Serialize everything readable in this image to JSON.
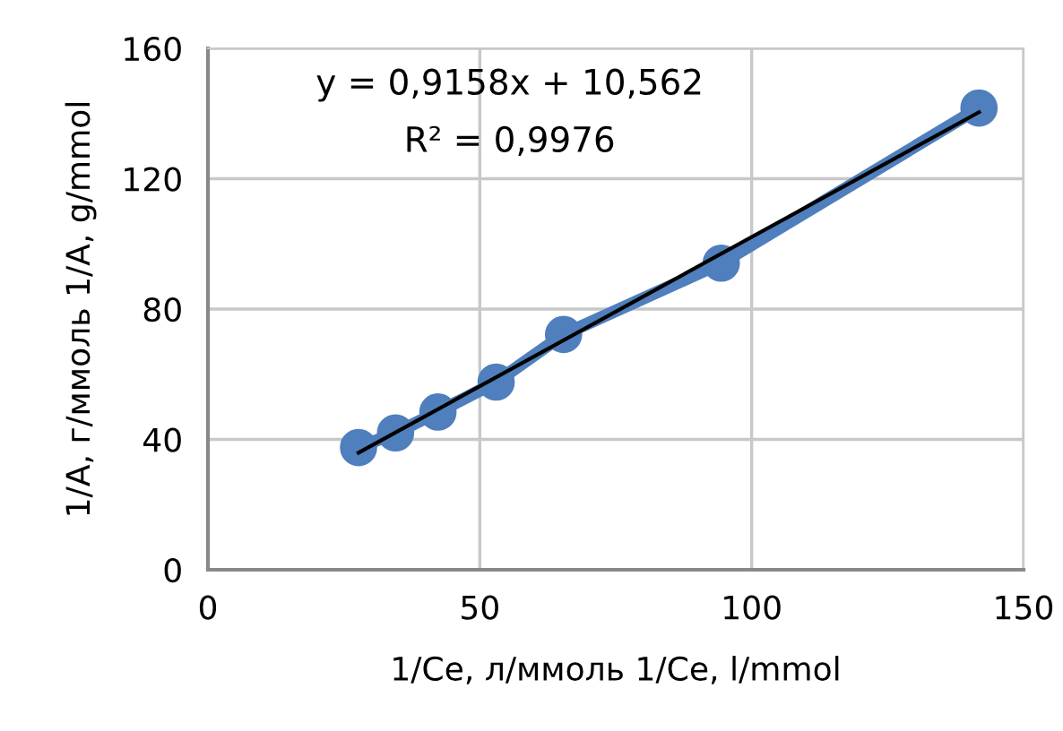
{
  "chart_data": {
    "type": "line",
    "xlabel": "1/Ce, л/ммоль 1/Ce, l/mmol",
    "ylabel": "1/A, г/ммоль 1/A, g/mmol",
    "series": [
      {
        "color": "#4f7fbc",
        "marker": "circle",
        "x": [
          27.7,
          34.5,
          42.3,
          53.0,
          65.4,
          94.4,
          141.8
        ],
        "values": [
          37.5,
          42.0,
          48.4,
          57.6,
          72.2,
          94.1,
          141.7
        ]
      },
      {
        "color": "#000000",
        "marker": "none",
        "x": [
          27.7,
          141.8
        ],
        "values": [
          35.9,
          140.4
        ]
      }
    ],
    "annotations": [
      "y = 0,9158x + 10,562",
      "R² = 0,9976"
    ],
    "xlim": [
      0,
      150
    ],
    "xticks": [
      0,
      50,
      100,
      150
    ],
    "ylim": [
      0,
      160
    ],
    "yticks": [
      0,
      40,
      80,
      120,
      160
    ],
    "grid": true
  }
}
